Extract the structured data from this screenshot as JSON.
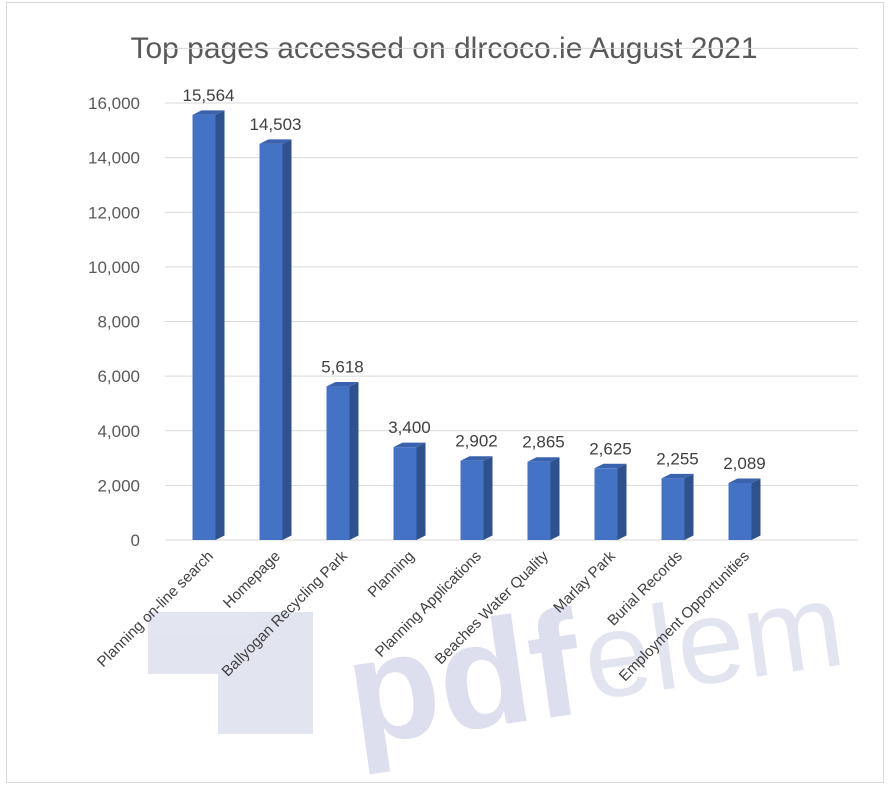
{
  "chart_data": {
    "type": "bar",
    "title": "Top pages accessed on dlrcoco.ie August 2021",
    "categories": [
      "Planning on-line search",
      "Homepage",
      "Ballyogan Recycling Park",
      "Planning",
      "Planning Applications",
      "Beaches Water Quality",
      "Marlay Park",
      "Burial Records",
      "Employment Opportunities"
    ],
    "values": [
      15564,
      14503,
      5618,
      3400,
      2902,
      2865,
      2625,
      2255,
      2089
    ],
    "data_labels": [
      "15,564",
      "14,503",
      "5,618",
      "3,400",
      "2,902",
      "2,865",
      "2,625",
      "2,255",
      "2,089"
    ],
    "y_ticks": [
      "0",
      "2,000",
      "4,000",
      "6,000",
      "8,000",
      "10,000",
      "12,000",
      "14,000",
      "16,000"
    ],
    "ylim": [
      0,
      16000
    ],
    "grid": true,
    "legend": "none",
    "colors": {
      "bar_front": "#4472c4",
      "bar_side": "#2f528f",
      "bar_top": "#3a62ad",
      "grid": "#d9d9d9"
    }
  },
  "watermark": {
    "text": "pdfelement"
  }
}
